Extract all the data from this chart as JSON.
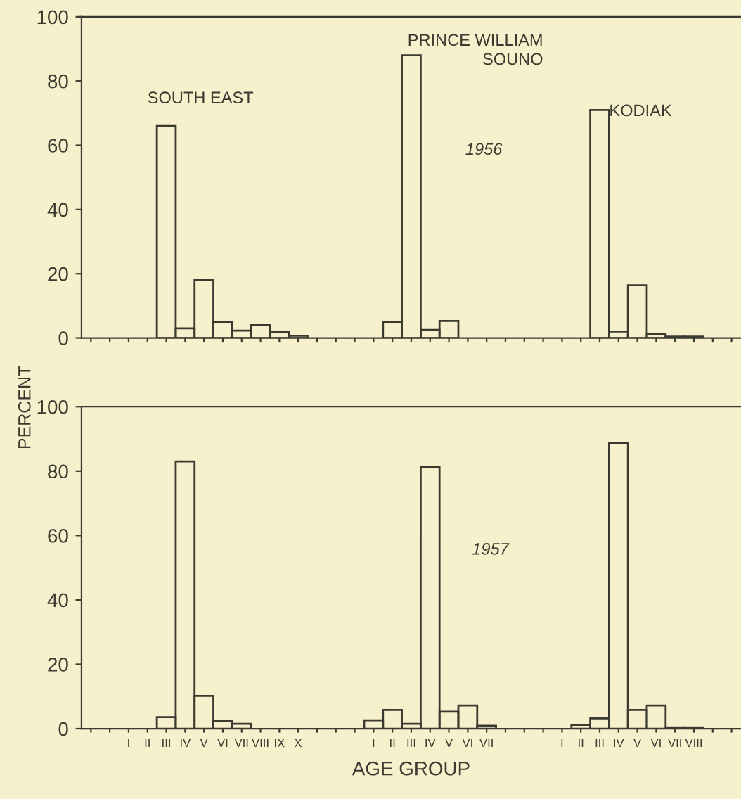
{
  "chart_data": [
    {
      "type": "bar",
      "ylabel": "PERCENT",
      "categories": [
        null,
        null,
        null,
        null,
        null,
        null,
        null,
        null,
        null,
        null,
        null,
        null,
        null,
        null,
        null,
        null,
        null,
        null,
        null,
        null,
        null,
        null,
        null,
        null,
        null,
        null,
        null,
        null,
        null,
        null,
        null,
        null,
        null,
        null,
        null
      ],
      "values": [
        null,
        null,
        null,
        null,
        66,
        3,
        18,
        5,
        2.3,
        4,
        1.8,
        0.7,
        null,
        null,
        null,
        null,
        5,
        88,
        2.5,
        5.3,
        null,
        null,
        null,
        null,
        null,
        null,
        null,
        71,
        2,
        16.4,
        1.3,
        0.4,
        0.4,
        null,
        null
      ],
      "color": "#3a3a30",
      "ylim": [
        0,
        100
      ],
      "yticks": [
        0,
        20,
        40,
        60,
        80,
        100
      ],
      "tick_labels": "y",
      "grid": false,
      "annotations": [
        "SOUTH EAST",
        "PRINCE WILLIAM\nSOUNO",
        "KODIAK",
        "1956"
      ]
    },
    {
      "type": "bar",
      "xlabel": "AGE GROUP",
      "categories": [
        null,
        null,
        "I",
        "II",
        "III",
        "IV",
        "V",
        "VI",
        "VII",
        "VIII",
        "IX",
        "X",
        null,
        null,
        null,
        "I",
        "II",
        "III",
        "IV",
        "V",
        "VI",
        "VII",
        null,
        null,
        null,
        "I",
        "II",
        "III",
        "IV",
        "V",
        "VI",
        "VII",
        "VIII",
        null,
        null
      ],
      "values": [
        null,
        null,
        null,
        null,
        3.6,
        83,
        10.2,
        2.3,
        1.5,
        null,
        null,
        null,
        null,
        null,
        null,
        2.6,
        5.8,
        1.5,
        81.3,
        5.3,
        7.2,
        0.9,
        null,
        null,
        null,
        null,
        1.2,
        3.2,
        88.8,
        5.8,
        7.2,
        0.4,
        0.4,
        null,
        null
      ],
      "color": "#3a3a30",
      "ylim": [
        0,
        100
      ],
      "yticks": [
        0,
        20,
        40,
        60,
        80,
        100
      ],
      "grid": false,
      "annotations": [
        "1957"
      ]
    }
  ]
}
